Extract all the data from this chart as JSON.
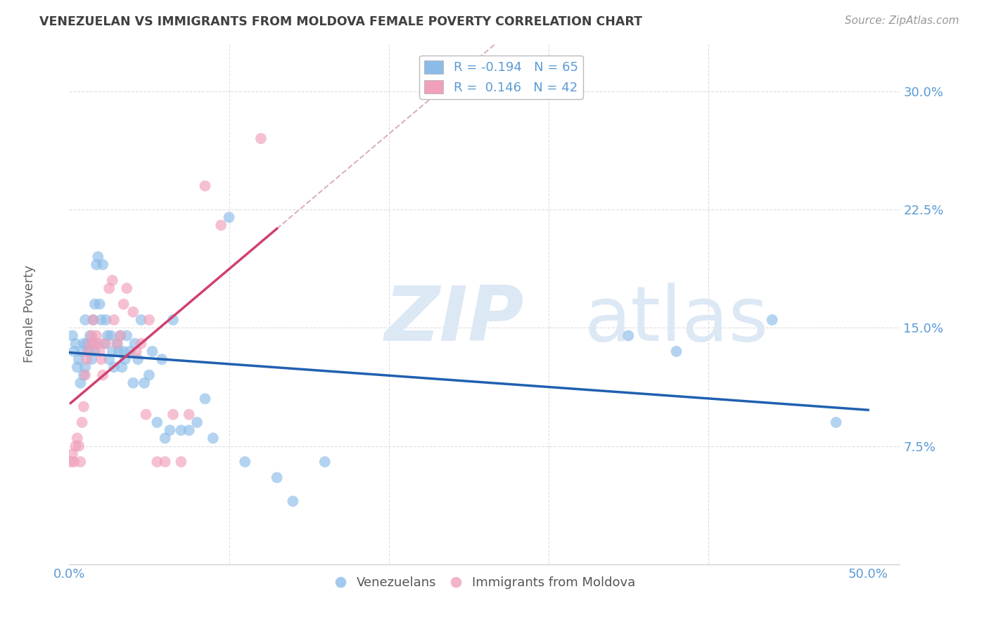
{
  "title": "VENEZUELAN VS IMMIGRANTS FROM MOLDOVA FEMALE POVERTY CORRELATION CHART",
  "source": "Source: ZipAtlas.com",
  "ylabel": "Female Poverty",
  "watermark": "ZIPatlas",
  "xlim": [
    0.0,
    0.52
  ],
  "ylim": [
    0.0,
    0.33
  ],
  "y_ticks": [
    0.075,
    0.15,
    0.225,
    0.3
  ],
  "y_tick_labels": [
    "7.5%",
    "15.0%",
    "22.5%",
    "30.0%"
  ],
  "x_tick_pos": [
    0.0,
    0.1,
    0.2,
    0.3,
    0.4,
    0.5
  ],
  "x_tick_labels": [
    "0.0%",
    "",
    "",
    "",
    "",
    "50.0%"
  ],
  "venezuelan_color": "#8bbce8",
  "moldova_color": "#f0a0bb",
  "trendline_color_ven": "#2060b0",
  "trendline_color_mol": "#d04070",
  "dashed_line_color": "#d8a8b8",
  "background_color": "#ffffff",
  "grid_color": "#dddddd",
  "title_color": "#404040",
  "axis_label_color": "#5b9bd5",
  "ylabel_color": "#666666",
  "watermark_color": "#dde8f5",
  "legend_border_color": "#bbbbbb",
  "venezuelan_x": [
    0.002,
    0.003,
    0.004,
    0.005,
    0.006,
    0.007,
    0.008,
    0.009,
    0.009,
    0.01,
    0.01,
    0.011,
    0.012,
    0.013,
    0.014,
    0.015,
    0.015,
    0.016,
    0.016,
    0.017,
    0.018,
    0.019,
    0.02,
    0.021,
    0.022,
    0.023,
    0.024,
    0.025,
    0.026,
    0.027,
    0.028,
    0.03,
    0.031,
    0.032,
    0.033,
    0.034,
    0.035,
    0.036,
    0.038,
    0.04,
    0.041,
    0.043,
    0.045,
    0.047,
    0.05,
    0.052,
    0.055,
    0.058,
    0.06,
    0.063,
    0.065,
    0.07,
    0.075,
    0.08,
    0.085,
    0.09,
    0.1,
    0.11,
    0.13,
    0.14,
    0.16,
    0.35,
    0.38,
    0.44,
    0.48
  ],
  "venezuelan_y": [
    0.145,
    0.135,
    0.14,
    0.125,
    0.13,
    0.115,
    0.135,
    0.14,
    0.12,
    0.155,
    0.125,
    0.14,
    0.135,
    0.145,
    0.13,
    0.155,
    0.14,
    0.165,
    0.135,
    0.19,
    0.195,
    0.165,
    0.155,
    0.19,
    0.14,
    0.155,
    0.145,
    0.13,
    0.145,
    0.135,
    0.125,
    0.14,
    0.135,
    0.145,
    0.125,
    0.135,
    0.13,
    0.145,
    0.135,
    0.115,
    0.14,
    0.13,
    0.155,
    0.115,
    0.12,
    0.135,
    0.09,
    0.13,
    0.08,
    0.085,
    0.155,
    0.085,
    0.085,
    0.09,
    0.105,
    0.08,
    0.22,
    0.065,
    0.055,
    0.04,
    0.065,
    0.145,
    0.135,
    0.155,
    0.09
  ],
  "moldova_x": [
    0.001,
    0.002,
    0.003,
    0.004,
    0.005,
    0.006,
    0.007,
    0.008,
    0.009,
    0.01,
    0.011,
    0.012,
    0.013,
    0.014,
    0.015,
    0.016,
    0.017,
    0.018,
    0.019,
    0.02,
    0.021,
    0.023,
    0.025,
    0.027,
    0.028,
    0.03,
    0.032,
    0.034,
    0.036,
    0.04,
    0.042,
    0.045,
    0.048,
    0.05,
    0.055,
    0.06,
    0.065,
    0.07,
    0.075,
    0.085,
    0.095,
    0.12
  ],
  "moldova_y": [
    0.065,
    0.07,
    0.065,
    0.075,
    0.08,
    0.075,
    0.065,
    0.09,
    0.1,
    0.12,
    0.13,
    0.135,
    0.14,
    0.145,
    0.155,
    0.14,
    0.145,
    0.14,
    0.135,
    0.13,
    0.12,
    0.14,
    0.175,
    0.18,
    0.155,
    0.14,
    0.145,
    0.165,
    0.175,
    0.16,
    0.135,
    0.14,
    0.095,
    0.155,
    0.065,
    0.065,
    0.095,
    0.065,
    0.095,
    0.24,
    0.215,
    0.27
  ]
}
